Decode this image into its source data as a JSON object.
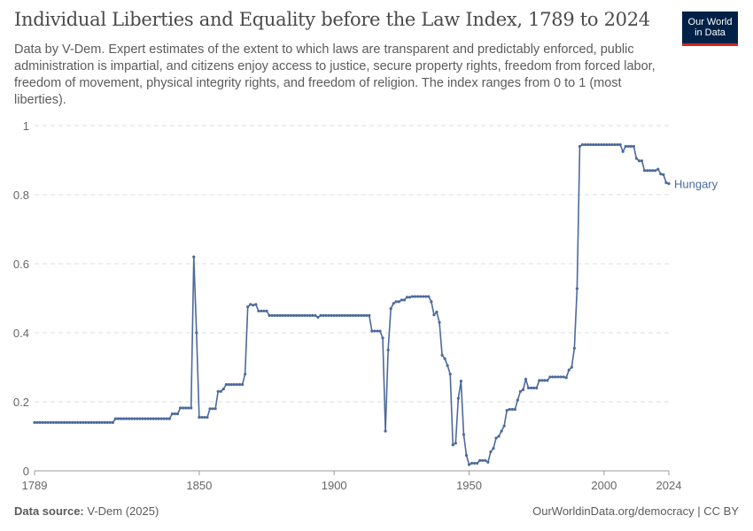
{
  "header": {
    "title": "Individual Liberties and Equality before the Law Index, 1789 to 2024",
    "subtitle": "Data by V-Dem. Expert estimates of the extent to which laws are transparent and predictably enforced, public administration is impartial, and citizens enjoy access to justice, secure property rights, freedom from forced labor, freedom of movement, physical integrity rights, and freedom of religion. The index ranges from 0 to 1 (most liberties).",
    "logo_line1": "Our World",
    "logo_line2": "in Data"
  },
  "footer": {
    "source_label": "Data source:",
    "source": "V-Dem (2025)",
    "link": "OurWorldinData.org/democracy | CC BY"
  },
  "chart_data": {
    "type": "line",
    "title": "Individual Liberties and Equality before the Law Index, 1789 to 2024",
    "xlim": [
      1789,
      2024
    ],
    "ylim": [
      0,
      1
    ],
    "x_ticks": [
      "1789",
      "1850",
      "1900",
      "1950",
      "2000",
      "2024"
    ],
    "y_ticks": [
      "0",
      "0.2",
      "0.4",
      "0.6",
      "0.8",
      "1"
    ],
    "grid": "horizontal dashed",
    "legend": "end-of-line label",
    "series": [
      {
        "name": "Hungary",
        "color": "#4c6a9c",
        "points": [
          [
            1789,
            0.14
          ],
          [
            1819,
            0.151
          ],
          [
            1840,
            0.165
          ],
          [
            1843,
            0.182
          ],
          [
            1848,
            0.62
          ],
          [
            1849,
            0.4
          ],
          [
            1850,
            0.155
          ],
          [
            1854,
            0.18
          ],
          [
            1857,
            0.23
          ],
          [
            1859,
            0.237
          ],
          [
            1860,
            0.25
          ],
          [
            1867,
            0.28
          ],
          [
            1868,
            0.475
          ],
          [
            1869,
            0.482
          ],
          [
            1870,
            0.48
          ],
          [
            1871,
            0.482
          ],
          [
            1872,
            0.463
          ],
          [
            1876,
            0.45
          ],
          [
            1894,
            0.445
          ],
          [
            1895,
            0.45
          ],
          [
            1914,
            0.405
          ],
          [
            1918,
            0.385
          ],
          [
            1919,
            0.115
          ],
          [
            1920,
            0.35
          ],
          [
            1921,
            0.47
          ],
          [
            1922,
            0.485
          ],
          [
            1923,
            0.49
          ],
          [
            1925,
            0.495
          ],
          [
            1927,
            0.503
          ],
          [
            1929,
            0.505
          ],
          [
            1936,
            0.49
          ],
          [
            1937,
            0.452
          ],
          [
            1938,
            0.46
          ],
          [
            1939,
            0.43
          ],
          [
            1940,
            0.335
          ],
          [
            1941,
            0.325
          ],
          [
            1942,
            0.305
          ],
          [
            1943,
            0.28
          ],
          [
            1944,
            0.075
          ],
          [
            1945,
            0.08
          ],
          [
            1946,
            0.21
          ],
          [
            1947,
            0.26
          ],
          [
            1948,
            0.105
          ],
          [
            1949,
            0.045
          ],
          [
            1950,
            0.018
          ],
          [
            1951,
            0.022
          ],
          [
            1954,
            0.03
          ],
          [
            1957,
            0.025
          ],
          [
            1958,
            0.055
          ],
          [
            1959,
            0.065
          ],
          [
            1960,
            0.095
          ],
          [
            1961,
            0.1
          ],
          [
            1962,
            0.115
          ],
          [
            1963,
            0.13
          ],
          [
            1964,
            0.175
          ],
          [
            1965,
            0.178
          ],
          [
            1968,
            0.205
          ],
          [
            1969,
            0.23
          ],
          [
            1970,
            0.235
          ],
          [
            1971,
            0.265
          ],
          [
            1972,
            0.24
          ],
          [
            1976,
            0.262
          ],
          [
            1980,
            0.272
          ],
          [
            1986,
            0.27
          ],
          [
            1987,
            0.292
          ],
          [
            1988,
            0.3
          ],
          [
            1989,
            0.355
          ],
          [
            1990,
            0.528
          ],
          [
            1991,
            0.94
          ],
          [
            1992,
            0.945
          ],
          [
            2007,
            0.925
          ],
          [
            2008,
            0.94
          ],
          [
            2012,
            0.905
          ],
          [
            2013,
            0.898
          ],
          [
            2015,
            0.87
          ],
          [
            2020,
            0.874
          ],
          [
            2021,
            0.86
          ],
          [
            2022,
            0.858
          ],
          [
            2023,
            0.835
          ],
          [
            2024,
            0.832
          ]
        ]
      }
    ]
  }
}
